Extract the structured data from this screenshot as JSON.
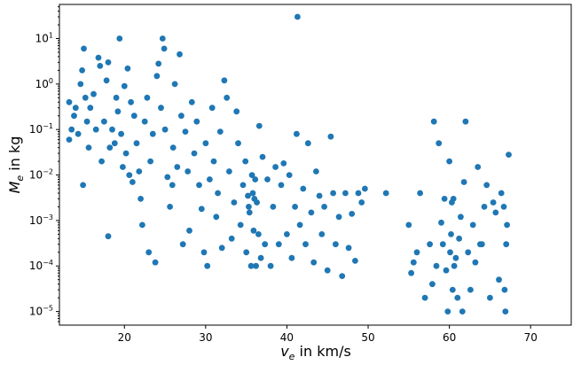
{
  "chart_data": {
    "type": "scatter",
    "title": "",
    "xlabel": {
      "base": "v",
      "sub": "e",
      "rest": " in km/s"
    },
    "ylabel": {
      "base": "M",
      "sub": "e",
      "rest": " in kg"
    },
    "xlim": [
      12,
      75
    ],
    "ylim_log10": [
      -5.3,
      1.75
    ],
    "y_scale": "log",
    "grid": false,
    "marker_color": "#1f77b4",
    "x_ticks": [
      20,
      30,
      40,
      50,
      60,
      70
    ],
    "x_tick_labels": [
      "20",
      "30",
      "40",
      "50",
      "60",
      "70"
    ],
    "y_ticks_log10": [
      -5,
      -4,
      -3,
      -2,
      -1,
      0,
      1
    ],
    "y_tick_labels": [
      {
        "base": "10",
        "exp": "−5"
      },
      {
        "base": "10",
        "exp": "−4"
      },
      {
        "base": "10",
        "exp": "−3"
      },
      {
        "base": "10",
        "exp": "−2"
      },
      {
        "base": "10",
        "exp": "−1"
      },
      {
        "base": "10",
        "exp": "0"
      },
      {
        "base": "10",
        "exp": "1"
      }
    ],
    "points": [
      [
        13.2,
        0.06
      ],
      [
        13.2,
        0.4
      ],
      [
        13.5,
        0.1
      ],
      [
        13.8,
        0.2
      ],
      [
        14.0,
        0.3
      ],
      [
        14.3,
        0.08
      ],
      [
        14.6,
        1.0
      ],
      [
        14.8,
        2.0
      ],
      [
        15.0,
        6.0
      ],
      [
        15.2,
        0.5
      ],
      [
        15.4,
        0.15
      ],
      [
        14.9,
        0.006
      ],
      [
        15.6,
        0.04
      ],
      [
        15.8,
        0.3
      ],
      [
        16.2,
        0.6
      ],
      [
        16.5,
        0.1
      ],
      [
        16.8,
        3.8
      ],
      [
        17.0,
        2.5
      ],
      [
        17.2,
        0.02
      ],
      [
        17.5,
        0.15
      ],
      [
        17.8,
        1.2
      ],
      [
        18.0,
        3.0
      ],
      [
        18.2,
        0.04
      ],
      [
        18.0,
        0.00045
      ],
      [
        18.5,
        0.1
      ],
      [
        18.8,
        0.05
      ],
      [
        19.0,
        0.5
      ],
      [
        19.2,
        0.25
      ],
      [
        19.4,
        10.0
      ],
      [
        19.6,
        0.08
      ],
      [
        19.8,
        0.015
      ],
      [
        20.0,
        0.9
      ],
      [
        20.2,
        0.03
      ],
      [
        20.4,
        2.2
      ],
      [
        20.6,
        0.01
      ],
      [
        20.8,
        0.4
      ],
      [
        21.0,
        0.007
      ],
      [
        21.2,
        0.2
      ],
      [
        21.5,
        0.05
      ],
      [
        21.8,
        0.012
      ],
      [
        22.0,
        0.003
      ],
      [
        22.2,
        0.0008
      ],
      [
        22.5,
        0.15
      ],
      [
        22.8,
        0.5
      ],
      [
        23.0,
        0.0002
      ],
      [
        23.2,
        0.02
      ],
      [
        23.5,
        0.08
      ],
      [
        23.8,
        0.00012
      ],
      [
        24.0,
        1.5
      ],
      [
        24.2,
        2.8
      ],
      [
        24.5,
        0.3
      ],
      [
        24.7,
        10.0
      ],
      [
        24.9,
        6.0
      ],
      [
        25.0,
        0.1
      ],
      [
        25.3,
        0.009
      ],
      [
        25.6,
        0.002
      ],
      [
        25.9,
        0.006
      ],
      [
        26.0,
        0.04
      ],
      [
        26.2,
        1.0
      ],
      [
        26.5,
        0.015
      ],
      [
        26.8,
        4.5
      ],
      [
        27.0,
        0.2
      ],
      [
        27.2,
        0.0003
      ],
      [
        27.5,
        0.09
      ],
      [
        27.8,
        0.012
      ],
      [
        28.0,
        0.0006
      ],
      [
        28.3,
        0.4
      ],
      [
        28.6,
        0.03
      ],
      [
        28.9,
        0.15
      ],
      [
        29.2,
        0.006
      ],
      [
        29.5,
        0.0018
      ],
      [
        29.8,
        0.0002
      ],
      [
        30.0,
        0.05
      ],
      [
        30.2,
        0.0001
      ],
      [
        30.5,
        0.008
      ],
      [
        30.8,
        0.3
      ],
      [
        31.0,
        0.02
      ],
      [
        31.3,
        0.0012
      ],
      [
        31.5,
        0.004
      ],
      [
        31.8,
        0.09
      ],
      [
        32.0,
        0.00025
      ],
      [
        32.3,
        1.2
      ],
      [
        32.6,
        0.5
      ],
      [
        32.9,
        0.012
      ],
      [
        33.2,
        0.0004
      ],
      [
        33.5,
        0.0025
      ],
      [
        33.8,
        0.25
      ],
      [
        34.0,
        0.05
      ],
      [
        34.3,
        0.0008
      ],
      [
        34.6,
        0.006
      ],
      [
        34.9,
        0.02
      ],
      [
        35.0,
        0.0002
      ],
      [
        35.2,
        0.0035
      ],
      [
        35.3,
        0.002
      ],
      [
        35.4,
        0.0015
      ],
      [
        35.6,
        0.0001
      ],
      [
        35.7,
        0.01
      ],
      [
        35.8,
        0.004
      ],
      [
        35.9,
        0.0006
      ],
      [
        36.0,
        0.003
      ],
      [
        36.1,
        0.008
      ],
      [
        36.2,
        0.0001
      ],
      [
        36.3,
        0.0025
      ],
      [
        36.5,
        0.0005
      ],
      [
        36.6,
        0.12
      ],
      [
        36.8,
        0.00015
      ],
      [
        37.0,
        0.025
      ],
      [
        37.3,
        0.0003
      ],
      [
        37.6,
        0.008
      ],
      [
        38.0,
        0.0001
      ],
      [
        38.3,
        0.002
      ],
      [
        38.6,
        0.015
      ],
      [
        39.0,
        0.0003
      ],
      [
        39.3,
        0.006
      ],
      [
        39.6,
        0.018
      ],
      [
        40.0,
        0.0005
      ],
      [
        40.3,
        0.01
      ],
      [
        40.6,
        0.00015
      ],
      [
        41.0,
        0.002
      ],
      [
        41.2,
        0.08
      ],
      [
        41.3,
        30.0
      ],
      [
        41.6,
        0.0008
      ],
      [
        42.0,
        0.005
      ],
      [
        42.3,
        0.0003
      ],
      [
        42.6,
        0.05
      ],
      [
        43.0,
        0.0015
      ],
      [
        43.3,
        0.00012
      ],
      [
        43.6,
        0.012
      ],
      [
        44.0,
        0.0035
      ],
      [
        44.3,
        0.0005
      ],
      [
        44.6,
        0.002
      ],
      [
        45.0,
        8e-05
      ],
      [
        45.4,
        0.07
      ],
      [
        45.7,
        0.004
      ],
      [
        46.0,
        0.0003
      ],
      [
        46.4,
        0.0012
      ],
      [
        46.8,
        6e-05
      ],
      [
        47.2,
        0.004
      ],
      [
        47.6,
        0.00025
      ],
      [
        48.0,
        0.0014
      ],
      [
        48.4,
        0.00013
      ],
      [
        48.8,
        0.004
      ],
      [
        49.2,
        0.0025
      ],
      [
        49.6,
        0.005
      ],
      [
        52.2,
        0.004
      ],
      [
        55.0,
        0.0008
      ],
      [
        55.3,
        7e-05
      ],
      [
        55.6,
        0.00012
      ],
      [
        56.0,
        0.0002
      ],
      [
        56.4,
        0.004
      ],
      [
        57.0,
        2e-05
      ],
      [
        57.6,
        0.0003
      ],
      [
        57.9,
        4e-05
      ],
      [
        58.1,
        0.15
      ],
      [
        58.4,
        0.0001
      ],
      [
        58.7,
        0.05
      ],
      [
        59.0,
        0.0009
      ],
      [
        59.2,
        0.0003
      ],
      [
        59.4,
        0.003
      ],
      [
        59.6,
        8e-05
      ],
      [
        59.8,
        1e-05
      ],
      [
        60.0,
        0.02
      ],
      [
        60.1,
        0.0002
      ],
      [
        60.2,
        0.0005
      ],
      [
        60.3,
        0.0025
      ],
      [
        60.4,
        3e-05
      ],
      [
        60.5,
        0.003
      ],
      [
        60.6,
        0.0001
      ],
      [
        60.8,
        0.00015
      ],
      [
        61.0,
        2e-05
      ],
      [
        61.2,
        0.0004
      ],
      [
        61.4,
        0.0012
      ],
      [
        61.6,
        1e-05
      ],
      [
        61.8,
        0.007
      ],
      [
        62.0,
        0.15
      ],
      [
        62.3,
        0.0002
      ],
      [
        62.6,
        3e-05
      ],
      [
        62.9,
        0.0008
      ],
      [
        63.2,
        0.00012
      ],
      [
        63.5,
        0.015
      ],
      [
        63.8,
        0.0003
      ],
      [
        64.0,
        0.0003
      ],
      [
        64.3,
        0.002
      ],
      [
        64.6,
        0.006
      ],
      [
        65.0,
        2e-05
      ],
      [
        65.4,
        0.0025
      ],
      [
        65.7,
        0.0015
      ],
      [
        66.1,
        5e-05
      ],
      [
        66.4,
        0.004
      ],
      [
        66.7,
        0.002
      ],
      [
        66.8,
        3e-05
      ],
      [
        66.9,
        1e-05
      ],
      [
        67.0,
        0.0003
      ],
      [
        67.1,
        0.0008
      ],
      [
        67.3,
        0.028
      ]
    ]
  }
}
